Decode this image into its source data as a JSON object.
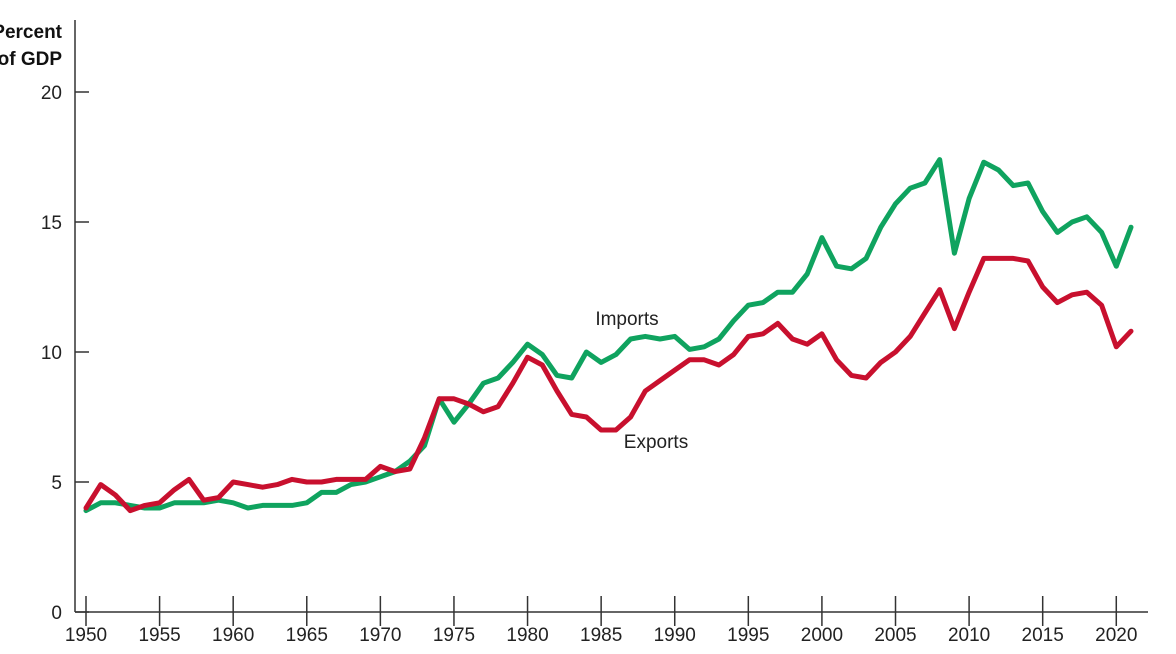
{
  "chart_data": {
    "type": "line",
    "ylabel_line1": "Percent",
    "ylabel_line2": "of GDP",
    "xlim": [
      1950,
      2021
    ],
    "ylim": [
      0,
      20
    ],
    "yticks": [
      0,
      5,
      10,
      15,
      20
    ],
    "xticks": [
      1950,
      1955,
      1960,
      1965,
      1970,
      1975,
      1980,
      1985,
      1990,
      1995,
      2000,
      2005,
      2010,
      2015,
      2020
    ],
    "grid": false,
    "x": [
      1950,
      1951,
      1952,
      1953,
      1954,
      1955,
      1956,
      1957,
      1958,
      1959,
      1960,
      1961,
      1962,
      1963,
      1964,
      1965,
      1966,
      1967,
      1968,
      1969,
      1970,
      1971,
      1972,
      1973,
      1974,
      1975,
      1976,
      1977,
      1978,
      1979,
      1980,
      1981,
      1982,
      1983,
      1984,
      1985,
      1986,
      1987,
      1988,
      1989,
      1990,
      1991,
      1992,
      1993,
      1994,
      1995,
      1996,
      1997,
      1998,
      1999,
      2000,
      2001,
      2002,
      2003,
      2004,
      2005,
      2006,
      2007,
      2008,
      2009,
      2010,
      2011,
      2012,
      2013,
      2014,
      2015,
      2016,
      2017,
      2018,
      2019,
      2020,
      2021
    ],
    "series": [
      {
        "name": "Imports",
        "color": "#0fa35f",
        "values": [
          3.9,
          4.2,
          4.2,
          4.1,
          4.0,
          4.0,
          4.2,
          4.2,
          4.2,
          4.3,
          4.2,
          4.0,
          4.1,
          4.1,
          4.1,
          4.2,
          4.6,
          4.6,
          4.9,
          5.0,
          5.2,
          5.4,
          5.8,
          6.4,
          8.2,
          7.3,
          8.0,
          8.8,
          9.0,
          9.6,
          10.3,
          9.9,
          9.1,
          9.0,
          10.0,
          9.6,
          9.9,
          10.5,
          10.6,
          10.5,
          10.6,
          10.1,
          10.2,
          10.5,
          11.2,
          11.8,
          11.9,
          12.3,
          12.3,
          13.0,
          14.4,
          13.3,
          13.2,
          13.6,
          14.8,
          15.7,
          16.3,
          16.5,
          17.4,
          13.8,
          15.9,
          17.3,
          17.0,
          16.4,
          16.5,
          15.4,
          14.6,
          15.0,
          15.2,
          14.6,
          13.3,
          14.8
        ]
      },
      {
        "name": "Exports",
        "color": "#c8102e",
        "values": [
          4.0,
          4.9,
          4.5,
          3.9,
          4.1,
          4.2,
          4.7,
          5.1,
          4.3,
          4.4,
          5.0,
          4.9,
          4.8,
          4.9,
          5.1,
          5.0,
          5.0,
          5.1,
          5.1,
          5.1,
          5.6,
          5.4,
          5.5,
          6.7,
          8.2,
          8.2,
          8.0,
          7.7,
          7.9,
          8.8,
          9.8,
          9.5,
          8.5,
          7.6,
          7.5,
          7.0,
          7.0,
          7.5,
          8.5,
          8.9,
          9.3,
          9.7,
          9.7,
          9.5,
          9.9,
          10.6,
          10.7,
          11.1,
          10.5,
          10.3,
          10.7,
          9.7,
          9.1,
          9.0,
          9.6,
          10.0,
          10.6,
          11.5,
          12.4,
          10.9,
          12.3,
          13.6,
          13.6,
          13.6,
          13.5,
          12.5,
          11.9,
          12.2,
          12.3,
          11.8,
          10.2,
          10.8
        ]
      }
    ]
  }
}
